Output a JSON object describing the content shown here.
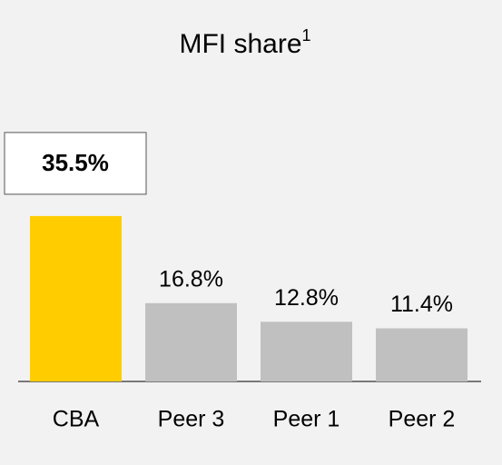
{
  "chart_data": {
    "type": "bar",
    "title": "MFI share",
    "title_footnote": "1",
    "categories": [
      "CBA",
      "Peer 3",
      "Peer 1",
      "Peer 2"
    ],
    "values": [
      35.5,
      16.8,
      12.8,
      11.4
    ],
    "value_labels": [
      "35.5%",
      "16.8%",
      "12.8%",
      "11.4%"
    ],
    "colors": [
      "#ffcc00",
      "#c0c0c0",
      "#c0c0c0",
      "#c0c0c0"
    ]
  }
}
